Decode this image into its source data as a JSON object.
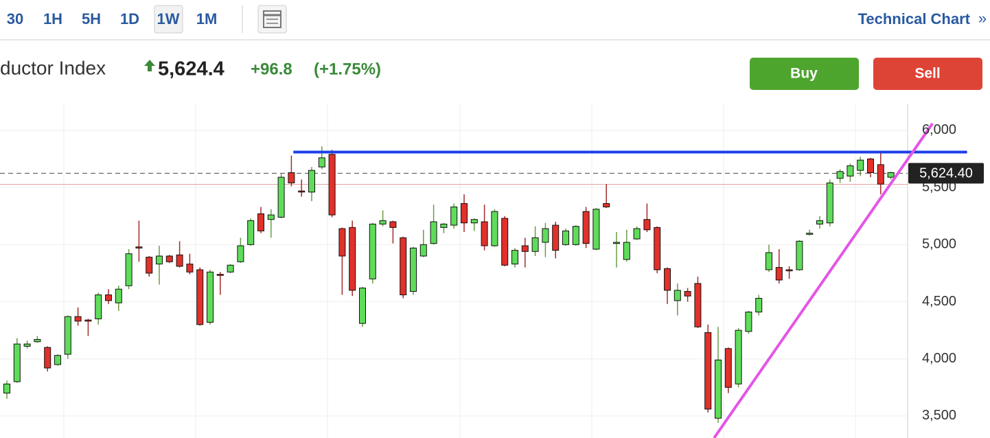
{
  "toolbar": {
    "intervals": [
      "30",
      "1H",
      "5H",
      "1D",
      "1W",
      "1M"
    ],
    "active": "1W",
    "link": "Technical Chart",
    "link_arrow": "»"
  },
  "quote": {
    "name": "ductor Index",
    "price": "5,624.4",
    "change": "+96.8",
    "change_pct": "(+1.75%)"
  },
  "actions": {
    "buy": "Buy",
    "sell": "Sell"
  },
  "chart_data": {
    "type": "candlestick",
    "series": [
      {
        "up_color": "#5fdc5a",
        "down_color": "#e2302a",
        "open": [
          3700,
          3800,
          4110,
          4150,
          4100,
          3950,
          4040,
          4370,
          4340,
          4350,
          4560,
          4490,
          4640,
          4980,
          4890,
          4830,
          4900,
          4910,
          4830,
          4780,
          4320,
          4740,
          4760,
          4850,
          5000,
          5270,
          5220,
          5240,
          5630,
          5470,
          5460,
          5680,
          5790,
          5140,
          5150,
          4310,
          4700,
          5180,
          5200,
          5060,
          4590,
          4900,
          5010,
          5150,
          5170,
          5360,
          5190,
          5200,
          4990,
          5230,
          4830,
          4990,
          4940,
          5020,
          5170,
          5000,
          5000,
          5290,
          4960,
          5360,
          5010,
          4870,
          5050,
          5220,
          5150,
          4790,
          4510,
          4590,
          4660,
          4230,
          3480,
          4090,
          3780,
          4240,
          4410,
          4780,
          4800,
          4780,
          4780,
          5090,
          5180,
          5190,
          5580,
          5600,
          5650,
          5750,
          5700,
          5590
        ],
        "high": [
          3810,
          4180,
          4160,
          4200,
          4110,
          4040,
          4380,
          4450,
          4350,
          4580,
          4610,
          4640,
          4960,
          5210,
          4900,
          4990,
          4910,
          5030,
          4920,
          4800,
          4780,
          4760,
          4830,
          5060,
          5230,
          5330,
          5310,
          5620,
          5780,
          5570,
          5680,
          5860,
          5830,
          5150,
          5210,
          4630,
          5190,
          5300,
          5210,
          5070,
          4980,
          5130,
          5350,
          5190,
          5360,
          5440,
          5230,
          5350,
          5310,
          5250,
          4970,
          5060,
          5160,
          5190,
          5200,
          5140,
          5170,
          5330,
          5320,
          5530,
          5110,
          5130,
          5160,
          5360,
          5160,
          4800,
          4660,
          4620,
          4720,
          4300,
          4280,
          4100,
          4270,
          4420,
          4560,
          5000,
          4960,
          4810,
          5040,
          5130,
          5250,
          5570,
          5660,
          5710,
          5770,
          5760,
          5800,
          5640
        ],
        "low": [
          3650,
          3790,
          4090,
          4140,
          3890,
          3940,
          4000,
          4290,
          4200,
          4300,
          4480,
          4420,
          4610,
          4850,
          4720,
          4650,
          4840,
          4800,
          4740,
          4290,
          4300,
          4560,
          4750,
          4840,
          4990,
          5100,
          5060,
          5230,
          5510,
          5420,
          5380,
          5660,
          5240,
          4560,
          4550,
          4280,
          4660,
          5160,
          5010,
          4530,
          4560,
          4890,
          5000,
          5100,
          5140,
          5110,
          5120,
          4950,
          4980,
          4810,
          4800,
          4800,
          4900,
          4890,
          4880,
          4990,
          4990,
          4970,
          4950,
          5320,
          4800,
          4850,
          5040,
          5110,
          4750,
          4480,
          4380,
          4500,
          4270,
          3530,
          3440,
          3700,
          3750,
          4220,
          4380,
          4760,
          4660,
          4700,
          4770,
          5080,
          5140,
          5160,
          5540,
          5550,
          5600,
          5590,
          5440,
          5570
        ],
        "close": [
          3780,
          4130,
          4130,
          4170,
          3920,
          4030,
          4370,
          4330,
          4330,
          4560,
          4510,
          4610,
          4920,
          4970,
          4750,
          4900,
          4850,
          4810,
          4760,
          4300,
          4760,
          4730,
          4820,
          4990,
          5210,
          5120,
          5260,
          5590,
          5540,
          5460,
          5650,
          5760,
          5260,
          4900,
          4600,
          4620,
          5180,
          5210,
          5150,
          4560,
          4970,
          5000,
          5200,
          5180,
          5330,
          5190,
          5220,
          4990,
          5290,
          4820,
          4950,
          4940,
          5060,
          5140,
          4950,
          5120,
          5160,
          5010,
          5310,
          5330,
          5020,
          5020,
          5140,
          5130,
          4780,
          4600,
          4600,
          4550,
          4280,
          3560,
          3990,
          3750,
          4250,
          4410,
          4530,
          4930,
          4690,
          4770,
          5030,
          5100,
          5210,
          5540,
          5640,
          5690,
          5740,
          5630,
          5530,
          5630
        ]
      }
    ],
    "ylim": [
      3307,
      6228
    ],
    "yticks": [
      {
        "value": 3500,
        "label": "3,500"
      },
      {
        "value": 4000,
        "label": "4,000"
      },
      {
        "value": 4500,
        "label": "4,500"
      },
      {
        "value": 5000,
        "label": "5,000"
      },
      {
        "value": 5500,
        "label": "5,500"
      },
      {
        "value": 6000,
        "label": "6,000"
      }
    ],
    "grid": true,
    "last_price": {
      "value": 5624.4,
      "label": "5,624.40"
    },
    "prev_close": 5527.6,
    "resistance_line": {
      "x": [
        28.2,
        94.5
      ],
      "y": [
        5810,
        5810
      ],
      "color": "#1c3fe8"
    },
    "support_line": {
      "x": [
        69.6,
        91.1
      ],
      "y": [
        3307,
        6060
      ],
      "color": "#e455e6"
    }
  }
}
